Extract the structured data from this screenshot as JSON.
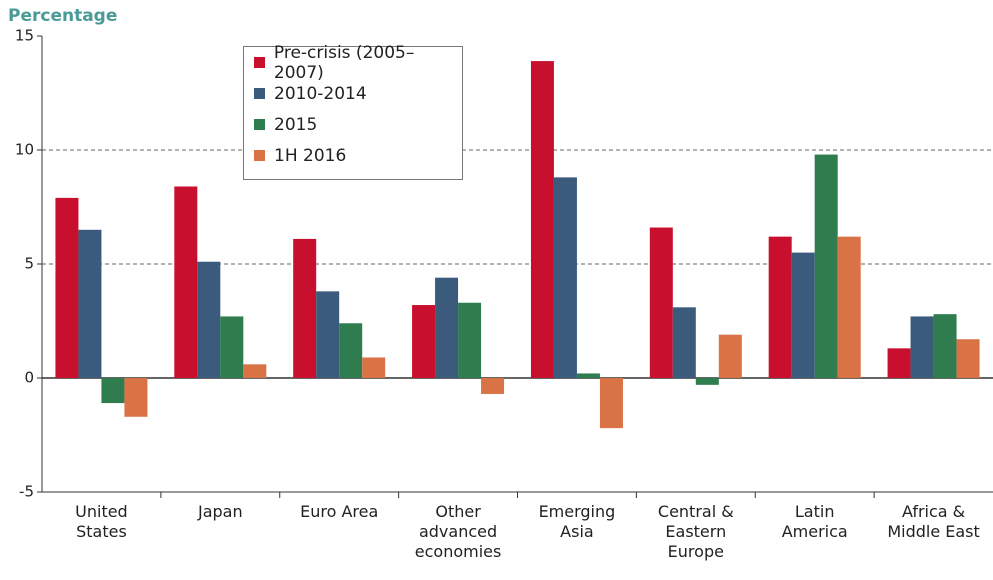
{
  "chart_data": {
    "type": "bar",
    "y_label": "Percentage",
    "categories": [
      "United States",
      "Japan",
      "Euro Area",
      "Other advanced economies",
      "Emerging Asia",
      "Central & Eastern Europe",
      "Latin America",
      "Africa & Middle East"
    ],
    "series": [
      {
        "name": "Pre-crisis (2005–2007)",
        "color": "#c8102e",
        "values": [
          7.9,
          8.4,
          6.1,
          3.2,
          13.9,
          6.6,
          6.2,
          1.3
        ]
      },
      {
        "name": "2010-2014",
        "color": "#3b5b7c",
        "values": [
          6.5,
          5.1,
          3.8,
          4.4,
          8.8,
          3.1,
          5.5,
          2.7
        ]
      },
      {
        "name": "2015",
        "color": "#2f7d4e",
        "values": [
          -1.1,
          2.7,
          2.4,
          3.3,
          0.2,
          -0.3,
          9.8,
          2.8
        ]
      },
      {
        "name": "1H 2016",
        "color": "#d97245",
        "values": [
          -1.7,
          0.6,
          0.9,
          -0.7,
          -2.2,
          1.9,
          6.2,
          1.7
        ]
      }
    ],
    "ylim": [
      -5,
      15
    ],
    "yticks": [
      -5,
      0,
      5,
      10,
      15
    ],
    "grid": true,
    "legend": "top-left"
  }
}
